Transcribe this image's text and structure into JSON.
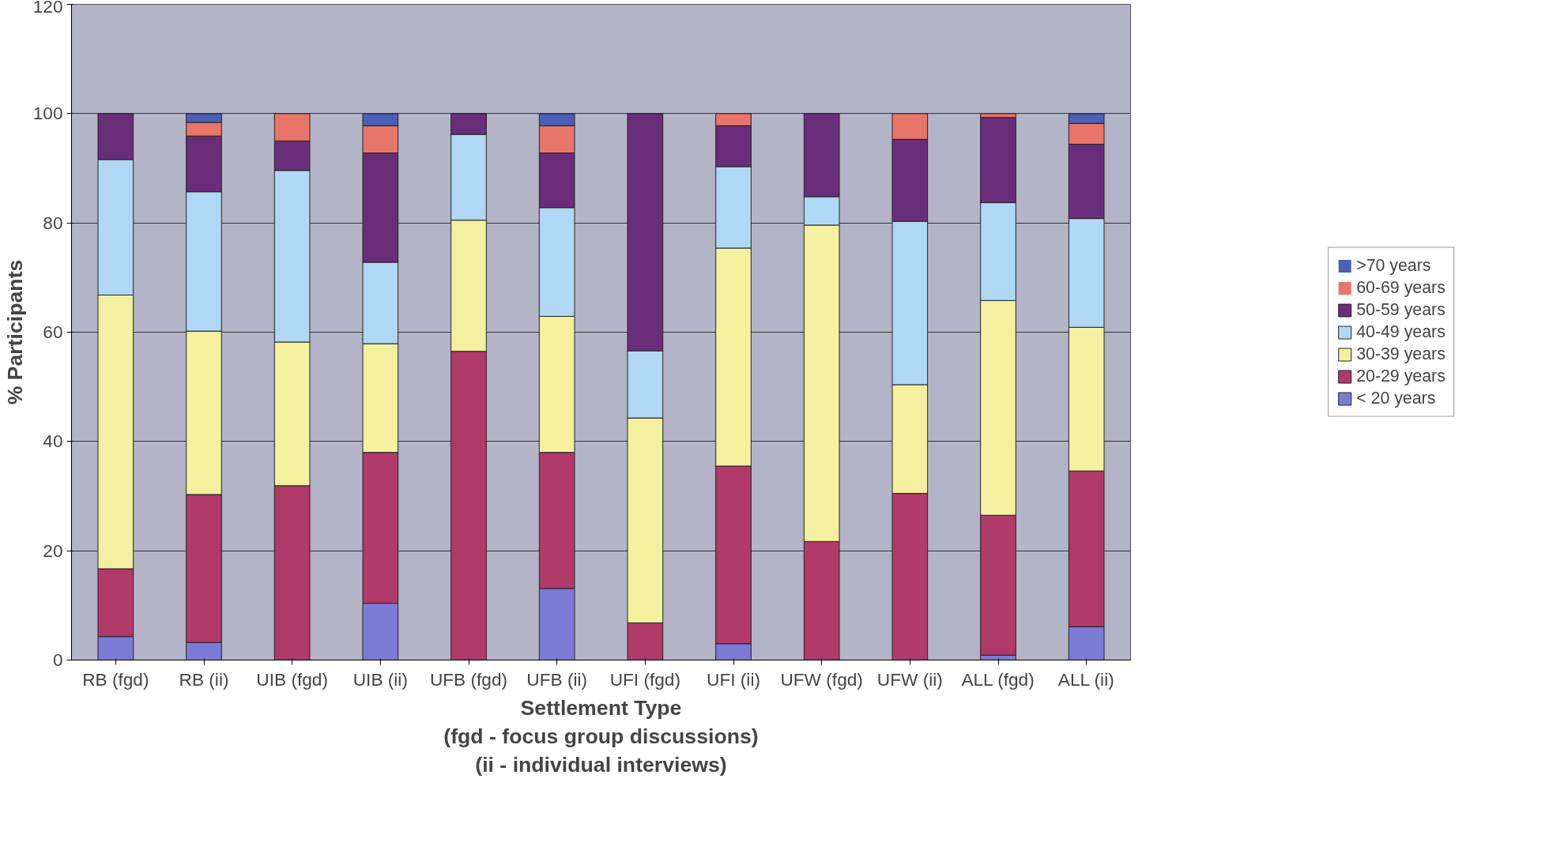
{
  "chart_data": {
    "type": "bar",
    "stacked": true,
    "xlabel": "Settlement Type\n(fgd - focus group discussions)\n(ii - individual interviews)",
    "ylabel": "% Participants",
    "categories": [
      "RB (fgd)",
      "RB (ii)",
      "UIB (fgd)",
      "UIB (ii)",
      "UFB (fgd)",
      "UFB (ii)",
      "UFI (fgd)",
      "UFI (ii)",
      "UFW (fgd)",
      "UFW (ii)",
      "ALL (fgd)",
      "ALL (ii)"
    ],
    "series": [
      {
        "name": "< 20 years",
        "color": "#7b7bd6",
        "values": [
          4.3,
          3.2,
          0,
          10.4,
          0,
          13.1,
          0,
          3.0,
          0,
          0,
          0.9,
          6.1
        ]
      },
      {
        "name": "20-29 years",
        "color": "#b03a6a",
        "values": [
          12.4,
          27.1,
          31.9,
          27.6,
          56.5,
          24.9,
          6.8,
          32.5,
          21.7,
          30.5,
          25.6,
          28.5
        ]
      },
      {
        "name": "30-39 years",
        "color": "#f5f0a0",
        "values": [
          50.1,
          29.9,
          26.3,
          19.9,
          24.0,
          24.9,
          37.5,
          39.9,
          57.9,
          19.9,
          39.3,
          26.3
        ]
      },
      {
        "name": "40-49 years",
        "color": "#b0d8f4",
        "values": [
          24.8,
          25.5,
          31.4,
          14.9,
          15.7,
          19.9,
          12.3,
          14.9,
          5.2,
          29.9,
          17.9,
          19.9
        ]
      },
      {
        "name": "50-59 years",
        "color": "#6a2d7a",
        "values": [
          8.4,
          10.2,
          5.4,
          20.0,
          3.8,
          10.0,
          43.4,
          7.5,
          15.2,
          15.0,
          15.6,
          13.6
        ]
      },
      {
        "name": "60-69 years",
        "color": "#e8756a",
        "values": [
          0,
          2.5,
          5.0,
          5.0,
          0,
          5.0,
          0,
          2.2,
          0,
          4.7,
          0.7,
          3.8
        ]
      },
      {
        "name": ">70 years",
        "color": "#4a5fb5",
        "values": [
          0,
          1.6,
          0,
          2.2,
          0,
          2.2,
          0,
          0,
          0,
          0,
          0,
          1.8
        ]
      }
    ],
    "ylim": [
      0,
      120
    ],
    "yticks": [
      0,
      20,
      40,
      60,
      80,
      100,
      120
    ],
    "grid": "y",
    "legend": "right"
  }
}
